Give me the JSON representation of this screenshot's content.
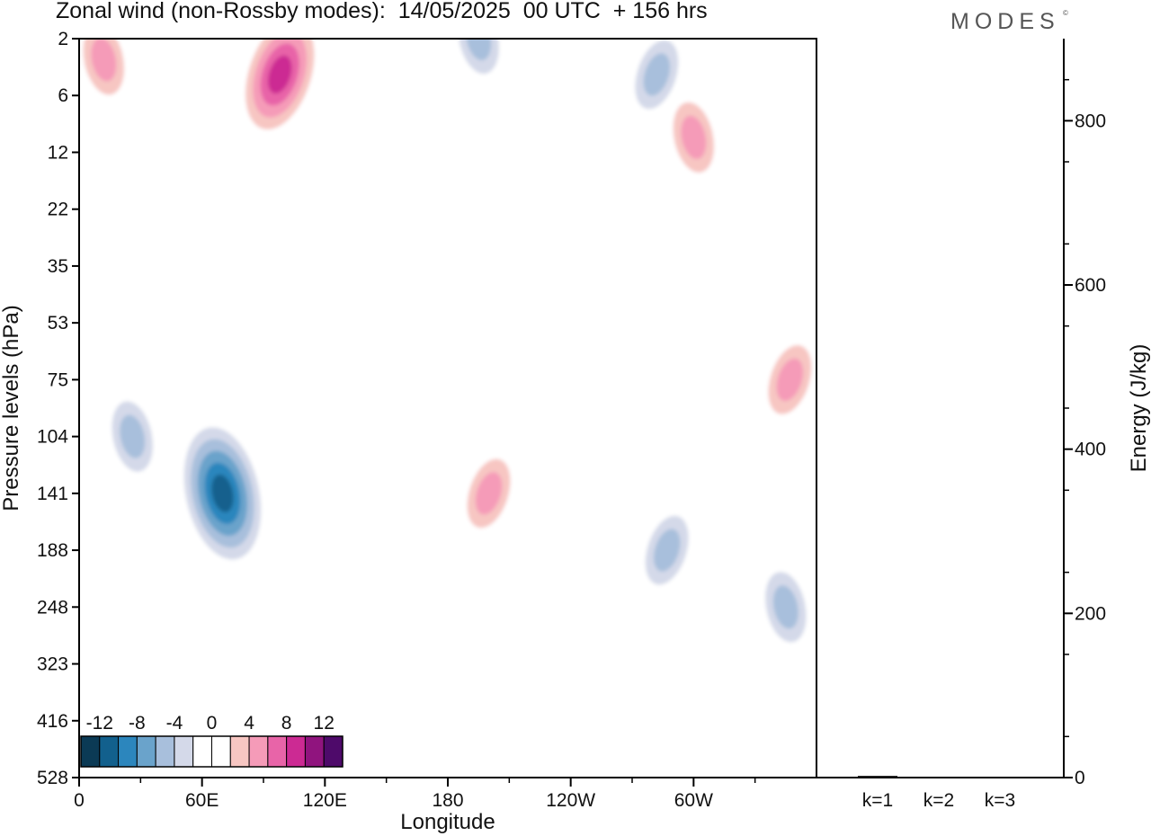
{
  "header": {
    "title": "Zonal wind (non-Rossby modes):  14/05/2025  00 UTC  + 156 hrs",
    "brand": "MODES",
    "brand_mark": "©"
  },
  "chart_data": [
    {
      "type": "heatmap",
      "title": "Zonal wind (non-Rossby modes):  14/05/2025  00 UTC  + 156 hrs",
      "xlabel": "Longitude",
      "ylabel": "Pressure levels (hPa)",
      "x_ticks": [
        "0",
        "60E",
        "120E",
        "180",
        "120W",
        "60W"
      ],
      "x_tick_values": [
        0,
        60,
        120,
        180,
        240,
        300
      ],
      "xlim": [
        0,
        360
      ],
      "y_ticks": [
        "2",
        "6",
        "12",
        "22",
        "35",
        "53",
        "75",
        "104",
        "141",
        "188",
        "248",
        "323",
        "416",
        "528"
      ],
      "y_order": "top-to-bottom",
      "colorbar": {
        "labels": [
          "-12",
          "-8",
          "-4",
          "0",
          "4",
          "8",
          "12"
        ],
        "label_values": [
          -12,
          -8,
          -4,
          0,
          4,
          8,
          12
        ],
        "levels": [
          -14,
          -12,
          -10,
          -8,
          -6,
          -4,
          -2,
          0,
          2,
          4,
          6,
          8,
          10,
          12,
          14
        ],
        "colors": [
          "#0b3a55",
          "#12608d",
          "#2c86bd",
          "#6aa3cb",
          "#a8bfdc",
          "#d4d9e9",
          "#ffffff",
          "#ffffff",
          "#f7c6c2",
          "#f59bb8",
          "#e864a8",
          "#cc2a93",
          "#90147e",
          "#4e0a6a"
        ]
      },
      "features": [
        {
          "lon": 70,
          "level": "141",
          "value": -12
        },
        {
          "lon": 98,
          "level": "4",
          "value": 10
        },
        {
          "lon": 12,
          "level": "3",
          "value": 6
        },
        {
          "lon": 200,
          "level": "141",
          "value": 6
        },
        {
          "lon": 300,
          "level": "10",
          "value": 6
        },
        {
          "lon": 347,
          "level": "75",
          "value": 6
        },
        {
          "lon": 195,
          "level": "2",
          "value": -6
        },
        {
          "lon": 282,
          "level": "4",
          "value": -6
        },
        {
          "lon": 26,
          "level": "104",
          "value": -6
        },
        {
          "lon": 287,
          "level": "188",
          "value": -6
        },
        {
          "lon": 345,
          "level": "248",
          "value": -6
        }
      ]
    },
    {
      "type": "bar",
      "categories": [
        "k=1",
        "k=2",
        "k=3"
      ],
      "values": [
        2,
        1,
        1
      ],
      "ylabel": "Energy (J/kg)",
      "ylim": [
        0,
        900
      ],
      "y_ticks": [
        0,
        200,
        400,
        600,
        800
      ]
    }
  ]
}
